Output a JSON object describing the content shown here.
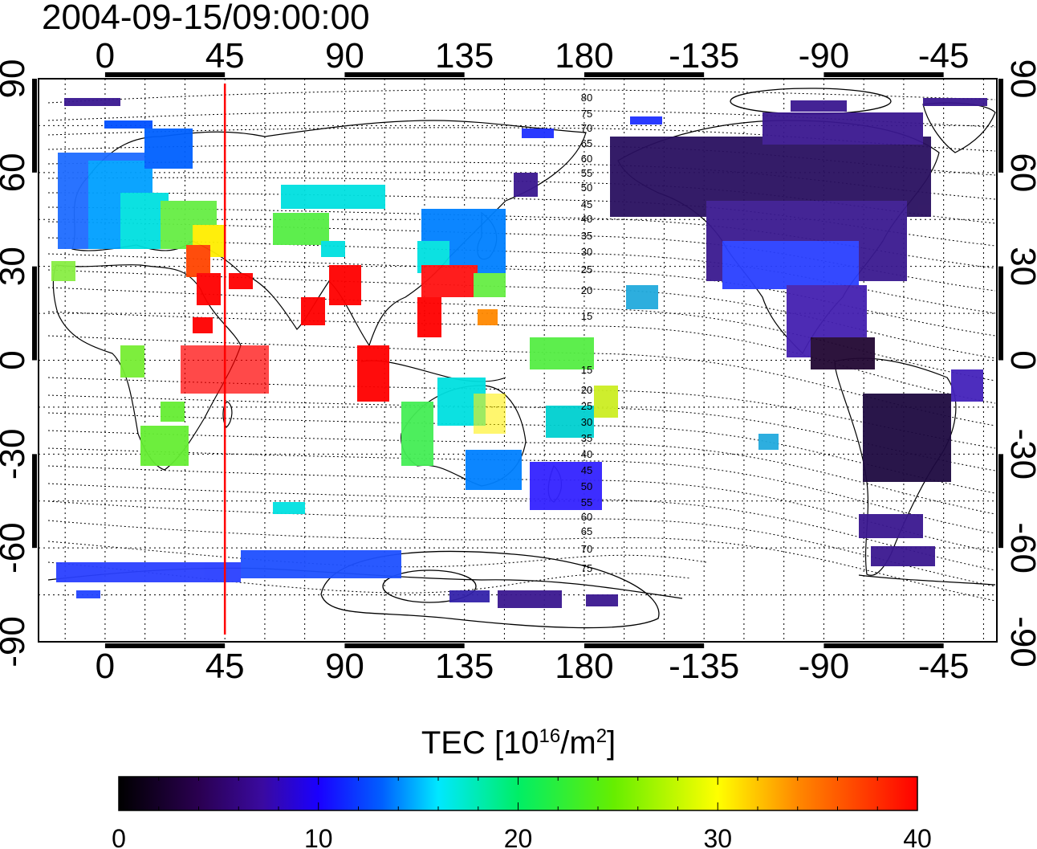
{
  "title": "2004-09-15/09:00:00",
  "x_ticks": [
    "0",
    "45",
    "90",
    "135",
    "180",
    "-135",
    "-90",
    "-45"
  ],
  "y_ticks": [
    "90",
    "60",
    "30",
    "0",
    "-30",
    "-60",
    "-90"
  ],
  "contour_labels_north": [
    "80",
    "75",
    "70",
    "65",
    "60",
    "55",
    "50",
    "45",
    "40",
    "35",
    "30",
    "25",
    "20",
    "15"
  ],
  "contour_labels_south": [
    "15",
    "20",
    "25",
    "30",
    "35",
    "40",
    "45",
    "50",
    "55",
    "60",
    "65",
    "70",
    "75"
  ],
  "marker_line_longitude": 45,
  "colorbar": {
    "title_main": "TEC  [10",
    "title_exp1": "16",
    "title_mid": "/m",
    "title_exp2": "2",
    "title_end": "]",
    "ticks": [
      "0",
      "10",
      "20",
      "30",
      "40"
    ],
    "range": [
      0,
      40
    ]
  },
  "colors": {
    "marker_line": "#ff0000",
    "frame": "#000000"
  }
}
